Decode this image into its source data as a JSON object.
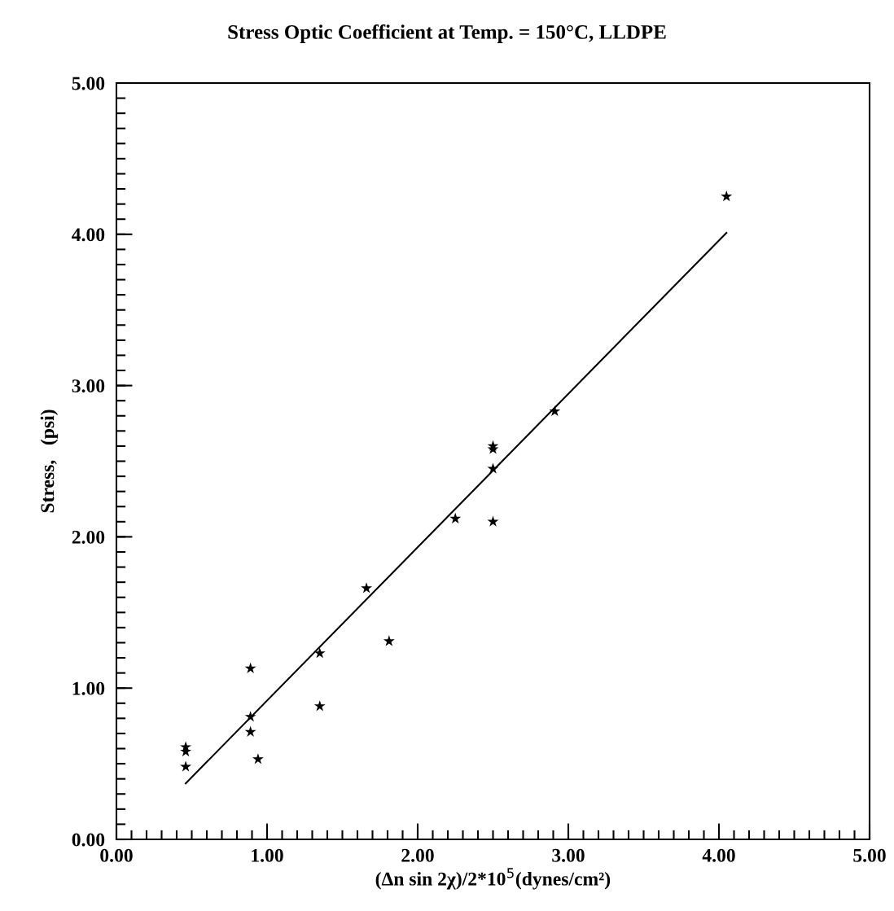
{
  "chart_data": {
    "type": "scatter",
    "title": "Stress Optic Coefficient at Temp. = 150°C, LLDPE",
    "xlabel": "(Δn sin 2χ)/2*10$^{5}$(dynes/cm²)",
    "ylabel": "Stress,   (psi)",
    "xlim": [
      0,
      5
    ],
    "ylim": [
      0,
      5
    ],
    "xticks": [
      {
        "value": 0,
        "label": "0.00"
      },
      {
        "value": 1,
        "label": "1.00"
      },
      {
        "value": 2,
        "label": "2.00"
      },
      {
        "value": 3,
        "label": "3.00"
      },
      {
        "value": 4,
        "label": "4.00"
      },
      {
        "value": 5,
        "label": "5.00"
      }
    ],
    "yticks": [
      {
        "value": 0,
        "label": "0.00"
      },
      {
        "value": 1,
        "label": "1.00"
      },
      {
        "value": 2,
        "label": "2.00"
      },
      {
        "value": 3,
        "label": "3.00"
      },
      {
        "value": 4,
        "label": "4.00"
      },
      {
        "value": 5,
        "label": "5.00"
      }
    ],
    "grid": false,
    "series": [
      {
        "marker": "star",
        "color": "#000000",
        "x": [
          0.46,
          0.46,
          0.46,
          0.89,
          0.89,
          0.89,
          0.94,
          1.35,
          1.35,
          1.66,
          1.81,
          2.25,
          2.5,
          2.5,
          2.5,
          2.5,
          2.91,
          4.05
        ],
        "values": [
          0.61,
          0.58,
          0.48,
          1.13,
          0.81,
          0.71,
          0.53,
          1.23,
          0.88,
          1.66,
          1.31,
          2.12,
          2.1,
          2.45,
          2.6,
          2.58,
          2.83,
          4.25
        ]
      },
      {
        "type": "line",
        "marker": "none",
        "line_style": "solid",
        "color": "#000000",
        "x": [
          0.46,
          4.05
        ],
        "values": [
          0.37,
          4.01
        ]
      }
    ]
  }
}
